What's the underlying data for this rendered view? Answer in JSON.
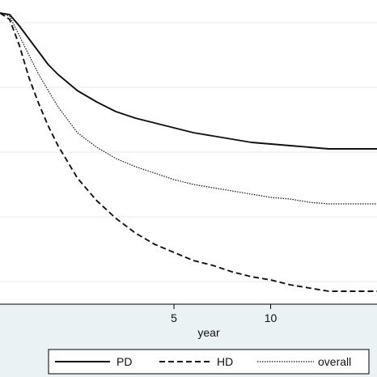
{
  "chart_data": {
    "type": "line",
    "title": "",
    "xlabel": "year",
    "ylabel": "",
    "xlim": [
      -4,
      15.5
    ],
    "ylim": [
      0.08,
      1.02
    ],
    "grid": true,
    "legend_position": "bottom",
    "x_ticks": [
      "5",
      "10"
    ],
    "x_tick_values": [
      5,
      10
    ],
    "y_grid_values": [
      0.15,
      0.35,
      0.55,
      0.75,
      0.95
    ],
    "background": "#eaf2f3",
    "plot_background": "#ffffff",
    "series": [
      {
        "name": "PD",
        "style": "solid",
        "x": [
          -4,
          -3.5,
          -3,
          -2.5,
          -2,
          -1.5,
          -1,
          0,
          1,
          2,
          3,
          4,
          5,
          6,
          7,
          8,
          9,
          10,
          11,
          12,
          13,
          14,
          15.5
        ],
        "y": [
          0.98,
          0.975,
          0.94,
          0.9,
          0.86,
          0.82,
          0.79,
          0.74,
          0.705,
          0.675,
          0.655,
          0.64,
          0.625,
          0.61,
          0.6,
          0.59,
          0.58,
          0.575,
          0.57,
          0.565,
          0.56,
          0.56,
          0.56
        ]
      },
      {
        "name": "HD",
        "style": "dashed",
        "x": [
          -4,
          -3.5,
          -3,
          -2.5,
          -2,
          -1.5,
          -1,
          0,
          1,
          2,
          3,
          4,
          5,
          6,
          7,
          8,
          9,
          10,
          11,
          12,
          13,
          14,
          15.5
        ],
        "y": [
          0.98,
          0.96,
          0.88,
          0.78,
          0.7,
          0.63,
          0.57,
          0.47,
          0.4,
          0.345,
          0.3,
          0.265,
          0.24,
          0.215,
          0.2,
          0.18,
          0.165,
          0.155,
          0.14,
          0.13,
          0.12,
          0.12,
          0.12
        ]
      },
      {
        "name": "overall",
        "style": "dotted",
        "x": [
          -4,
          -3.5,
          -3,
          -2.5,
          -2,
          -1.5,
          -1,
          0,
          1,
          2,
          3,
          4,
          5,
          6,
          7,
          8,
          9,
          10,
          11,
          12,
          13,
          14,
          15.5
        ],
        "y": [
          0.98,
          0.97,
          0.91,
          0.85,
          0.79,
          0.74,
          0.69,
          0.61,
          0.565,
          0.53,
          0.505,
          0.485,
          0.465,
          0.45,
          0.44,
          0.43,
          0.42,
          0.41,
          0.405,
          0.395,
          0.39,
          0.39,
          0.39
        ]
      }
    ]
  }
}
